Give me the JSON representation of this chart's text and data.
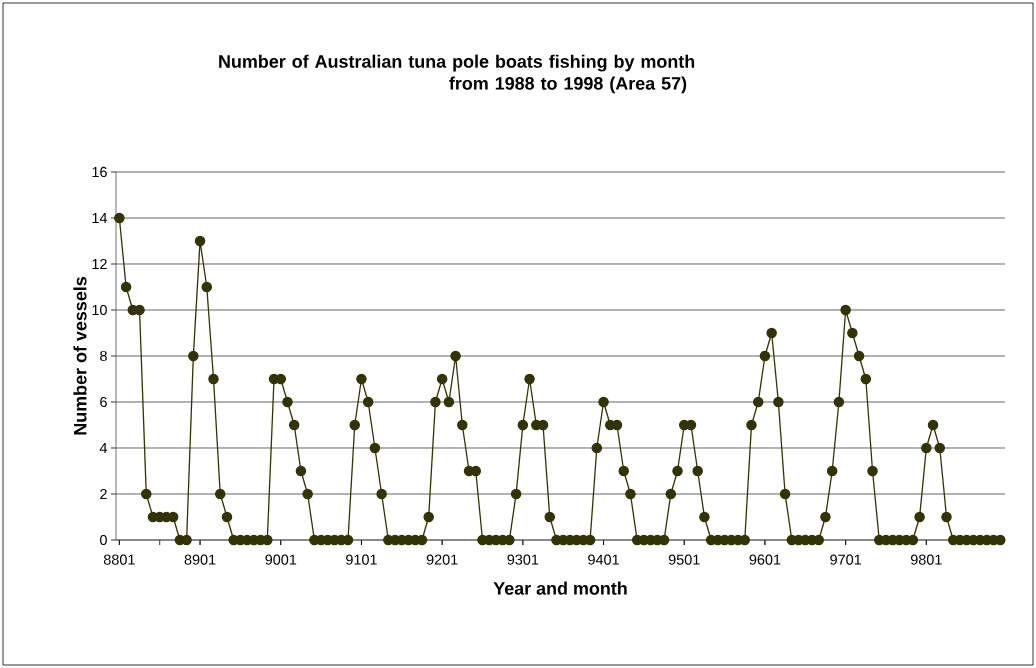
{
  "chart_data": {
    "type": "line",
    "title": "Number of Australian tuna pole boats fishing by month\nfrom 1988 to 1998 (Area 57)",
    "xlabel": "Year and month",
    "ylabel": "Number of vessels",
    "categories": [
      "8801",
      null,
      null,
      null,
      null,
      null,
      null,
      null,
      null,
      null,
      null,
      null,
      "8901",
      null,
      null,
      null,
      null,
      null,
      null,
      null,
      null,
      null,
      null,
      null,
      "9001",
      null,
      null,
      null,
      null,
      null,
      null,
      null,
      null,
      null,
      null,
      null,
      "9101",
      null,
      null,
      null,
      null,
      null,
      null,
      null,
      null,
      null,
      null,
      null,
      "9201",
      null,
      null,
      null,
      null,
      null,
      null,
      null,
      null,
      null,
      null,
      null,
      "9301",
      null,
      null,
      null,
      null,
      null,
      null,
      null,
      null,
      null,
      null,
      null,
      "9401",
      null,
      null,
      null,
      null,
      null,
      null,
      null,
      null,
      null,
      null,
      null,
      "9501",
      null,
      null,
      null,
      null,
      null,
      null,
      null,
      null,
      null,
      null,
      null,
      "9601",
      null,
      null,
      null,
      null,
      null,
      null,
      null,
      null,
      null,
      null,
      null,
      "9701",
      null,
      null,
      null,
      null,
      null,
      null,
      null,
      null,
      null,
      null,
      null,
      "9801",
      null,
      null,
      null,
      null,
      null,
      null,
      null,
      null,
      null,
      null,
      null
    ],
    "values": [
      14,
      11,
      10,
      10,
      2,
      1,
      1,
      1,
      1,
      0,
      0,
      8,
      13,
      11,
      7,
      2,
      1,
      0,
      0,
      0,
      0,
      0,
      0,
      7,
      7,
      6,
      5,
      3,
      2,
      0,
      0,
      0,
      0,
      0,
      0,
      5,
      7,
      6,
      4,
      2,
      0,
      0,
      0,
      0,
      0,
      0,
      1,
      6,
      7,
      6,
      8,
      5,
      3,
      3,
      0,
      0,
      0,
      0,
      0,
      2,
      5,
      7,
      5,
      5,
      1,
      0,
      0,
      0,
      0,
      0,
      0,
      4,
      6,
      5,
      5,
      3,
      2,
      0,
      0,
      0,
      0,
      0,
      2,
      3,
      5,
      5,
      3,
      1,
      0,
      0,
      0,
      0,
      0,
      0,
      5,
      6,
      8,
      9,
      6,
      2,
      0,
      0,
      0,
      0,
      0,
      1,
      3,
      6,
      10,
      9,
      8,
      7,
      3,
      0,
      0,
      0,
      0,
      0,
      0,
      1,
      4,
      5,
      4,
      1,
      0,
      0,
      0,
      0,
      0,
      0,
      0,
      0
    ],
    "color": "#333300",
    "marker": "circle",
    "line_style": "solid",
    "grid": "y",
    "ylim": [
      0,
      16
    ],
    "yticks": [
      0,
      2,
      4,
      6,
      8,
      10,
      12,
      14,
      16
    ]
  }
}
